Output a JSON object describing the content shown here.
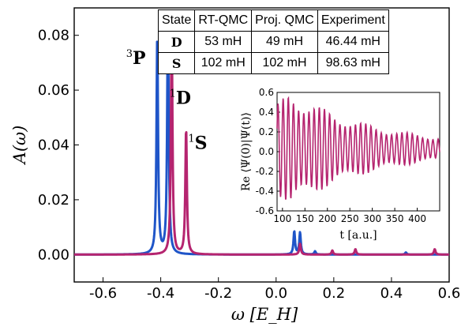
{
  "chart_data": [
    {
      "type": "line",
      "xlabel": "ω [E_H]",
      "ylabel": "A(ω)",
      "xlim": [
        -0.7,
        0.6
      ],
      "ylim": [
        -0.01,
        0.09
      ],
      "xticks": [
        "-0.6",
        "-0.4",
        "-0.2",
        "0.0",
        "0.2",
        "0.4",
        "0.6"
      ],
      "yticks": [
        "0.00",
        "0.02",
        "0.04",
        "0.06",
        "0.08"
      ],
      "grid": false,
      "series": [
        {
          "color": "#1f55c8",
          "peaks": [
            {
              "x": -0.412,
              "y": 0.08
            },
            {
              "x": -0.375,
              "y": 0.089
            },
            {
              "x": 0.063,
              "y": 0.0085
            },
            {
              "x": 0.083,
              "y": 0.008
            },
            {
              "x": 0.135,
              "y": 0.0012
            },
            {
              "x": 0.45,
              "y": 0.0008
            }
          ]
        },
        {
          "color": "#b5246f",
          "peaks": [
            {
              "x": -0.362,
              "y": 0.083
            },
            {
              "x": -0.312,
              "y": 0.046
            },
            {
              "x": 0.083,
              "y": 0.004
            },
            {
              "x": 0.195,
              "y": 0.0015
            },
            {
              "x": 0.275,
              "y": 0.002
            },
            {
              "x": 0.55,
              "y": 0.002
            }
          ]
        }
      ],
      "annotations": [
        {
          "sup": "3",
          "label": "P",
          "x": -0.52,
          "y": 0.0695
        },
        {
          "sup": "1",
          "label": "D",
          "x": -0.37,
          "y": 0.055
        },
        {
          "sup": "1",
          "label": "S",
          "x": -0.305,
          "y": 0.0385
        }
      ]
    },
    {
      "type": "line",
      "xlabel": "t [a.u.]",
      "ylabel": "Re ⟨Ψ(0)|Ψ(t)⟩",
      "xlim": [
        88,
        450
      ],
      "ylim": [
        -0.6,
        0.6
      ],
      "xticks": [
        "100",
        "150",
        "200",
        "250",
        "300",
        "350",
        "400"
      ],
      "yticks": [
        "0.6",
        "0.4",
        "0.2",
        "0.0",
        "-0.2",
        "-0.4",
        "-0.6"
      ],
      "series": [
        {
          "color": "#b5246f",
          "period": 11.5,
          "envelope_max": 0.57,
          "envelope_min": 0.12
        }
      ]
    }
  ],
  "table": {
    "headers": [
      "State",
      "RT-QMC",
      "Proj. QMC",
      "Experiment"
    ],
    "rows": [
      [
        "D",
        "53 mH",
        "49 mH",
        "46.44 mH"
      ],
      [
        "S",
        "102 mH",
        "102 mH",
        "98.63 mH"
      ]
    ]
  }
}
